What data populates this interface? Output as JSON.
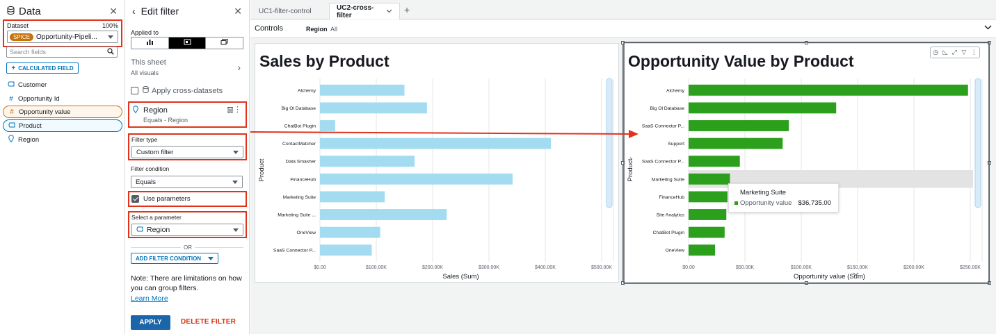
{
  "data_panel": {
    "title": "Data",
    "dataset_label": "Dataset",
    "dataset_percent": "100%",
    "spice_badge": "SPICE",
    "dataset_name": "Opportunity-Pipeli...",
    "search_placeholder": "Search fields",
    "calc_button": "CALCULATED FIELD",
    "fields": [
      {
        "label": "Customer",
        "icon": "dimension-icon"
      },
      {
        "label": "Opportunity Id",
        "icon": "measure-icon"
      },
      {
        "label": "Opportunity value",
        "icon": "measure-icon"
      },
      {
        "label": "Product",
        "icon": "dimension-icon"
      },
      {
        "label": "Region",
        "icon": "geo-pin-icon"
      }
    ]
  },
  "filter_panel": {
    "title": "Edit filter",
    "applied_to": "Applied to",
    "this_sheet": "This sheet",
    "all_visuals": "All visuals",
    "apply_cross": "Apply cross-datasets",
    "filter_title": "Region",
    "filter_sub": "Equals - Region",
    "filter_type_label": "Filter type",
    "filter_type_value": "Custom filter",
    "filter_condition_label": "Filter condition",
    "filter_condition_value": "Equals",
    "use_parameters": "Use parameters",
    "select_param_label": "Select a parameter",
    "select_param_value": "Region",
    "or_text": "OR",
    "add_condition": "ADD FILTER CONDITION",
    "note": "Note: There are limitations on how you can group filters.",
    "learn_more": "Learn More",
    "apply": "APPLY",
    "delete": "DELETE FILTER"
  },
  "tabs": [
    {
      "label": "UC1-filter-control"
    },
    {
      "label": "UC2-cross-filter"
    }
  ],
  "controls": {
    "label": "Controls",
    "region_label": "Region",
    "region_value": "All"
  },
  "colors": {
    "sales_bar": "#a3dcf1",
    "opp_bar": "#2ca01c",
    "highlight_red": "#e2321b"
  },
  "tooltip": {
    "title": "Marketing Suite",
    "label": "Opportunity value",
    "value": "$36,735.00"
  },
  "chart_data": [
    {
      "type": "bar",
      "orientation": "horizontal",
      "title": "Sales by Product",
      "xlabel": "Sales (Sum)",
      "ylabel": "Product",
      "categories": [
        "Alchemy",
        "Big Ol Database",
        "ChatBot Plugin",
        "ContactMatcher",
        "Data Smasher",
        "FinanceHub",
        "Marketing Suite",
        "Marketing Suite ...",
        "OneView",
        "SaaS Connector P..."
      ],
      "values": [
        150000,
        190000,
        27000,
        410000,
        168000,
        342000,
        115000,
        225000,
        107000,
        92000
      ],
      "xlim": [
        0,
        500000
      ],
      "ticks": [
        "$0.00",
        "$100.00K",
        "$200.00K",
        "$300.00K",
        "$400.00K",
        "$500.00K"
      ],
      "grid": true
    },
    {
      "type": "bar",
      "orientation": "horizontal",
      "title": "Opportunity Value by Product",
      "xlabel": "Opportunity value (Sum)",
      "ylabel": "Product",
      "categories": [
        "Alchemy",
        "Big Ol Database",
        "SaaS Connector P...",
        "Support",
        "SaaS Connector P...",
        "Marketing Suite",
        "FinanceHub",
        "Site Analytics",
        "ChatBot Plugin",
        "OneView"
      ],
      "values": [
        248000,
        131000,
        89000,
        83500,
        45500,
        36735,
        34500,
        33500,
        32000,
        23500
      ],
      "xlim": [
        0,
        250000
      ],
      "ticks": [
        "$0.00",
        "$50.00K",
        "$100.00K",
        "$150.00K",
        "$200.00K",
        "$250.00K"
      ],
      "highlighted": "Marketing Suite",
      "grid": true
    }
  ]
}
